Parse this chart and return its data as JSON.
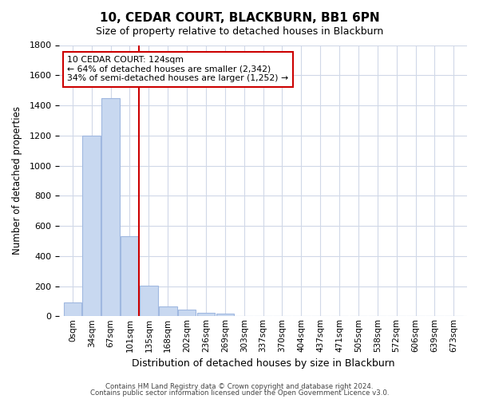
{
  "title": "10, CEDAR COURT, BLACKBURN, BB1 6PN",
  "subtitle": "Size of property relative to detached houses in Blackburn",
  "xlabel": "Distribution of detached houses by size in Blackburn",
  "ylabel": "Number of detached properties",
  "bar_labels": [
    "0sqm",
    "34sqm",
    "67sqm",
    "101sqm",
    "135sqm",
    "168sqm",
    "202sqm",
    "236sqm",
    "269sqm",
    "303sqm",
    "337sqm",
    "370sqm",
    "404sqm",
    "437sqm",
    "471sqm",
    "505sqm",
    "538sqm",
    "572sqm",
    "606sqm",
    "639sqm",
    "673sqm"
  ],
  "bar_values": [
    90,
    1200,
    1450,
    530,
    205,
    65,
    45,
    25,
    15,
    0,
    0,
    0,
    0,
    0,
    0,
    0,
    0,
    0,
    0,
    0,
    0
  ],
  "bar_color": "#c8d8f0",
  "bar_edge_color": "#a0b8e0",
  "vline_x": 3.5,
  "vline_color": "#cc0000",
  "ylim": [
    0,
    1800
  ],
  "yticks": [
    0,
    200,
    400,
    600,
    800,
    1000,
    1200,
    1400,
    1600,
    1800
  ],
  "annotation_title": "10 CEDAR COURT: 124sqm",
  "annotation_line1": "← 64% of detached houses are smaller (2,342)",
  "annotation_line2": "34% of semi-detached houses are larger (1,252) →",
  "annotation_box_color": "#ffffff",
  "annotation_box_edge": "#cc0000",
  "footer_line1": "Contains HM Land Registry data © Crown copyright and database right 2024.",
  "footer_line2": "Contains public sector information licensed under the Open Government Licence v3.0.",
  "background_color": "#ffffff",
  "grid_color": "#d0d8e8"
}
